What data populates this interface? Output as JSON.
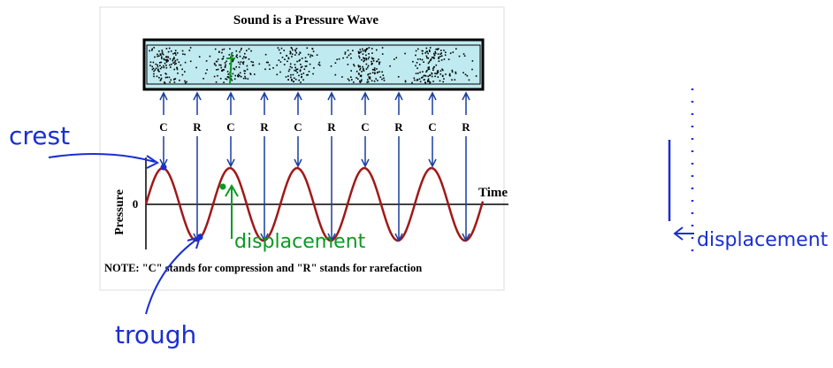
{
  "header": {
    "title": "Sound is a Pressure Wave"
  },
  "wave_labels": [
    "C",
    "R",
    "C",
    "R",
    "C",
    "R",
    "C",
    "R",
    "C",
    "R"
  ],
  "axis": {
    "y_label": "Pressure",
    "zero": "0",
    "x_label": "Time"
  },
  "note": "NOTE: \"C\" stands for compression and \"R\" stands for rarefaction",
  "annotations": {
    "crest": "crest",
    "trough": "trough",
    "displacement_wave": "displacement",
    "displacement_side": "displacement"
  }
}
